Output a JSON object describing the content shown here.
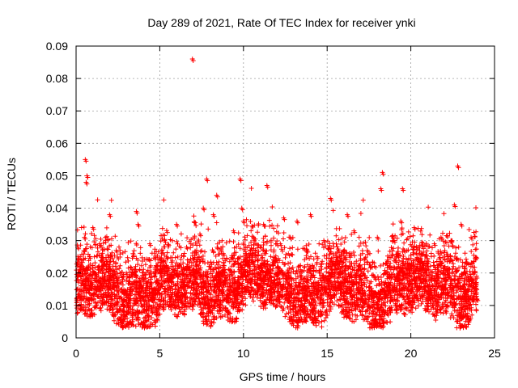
{
  "chart_data": {
    "type": "scatter",
    "title": "Day 289 of 2021, Rate Of TEC Index for receiver ynki",
    "xlabel": "GPS time / hours",
    "ylabel": "ROTI / TECUs",
    "xlim": [
      0,
      25
    ],
    "ylim": [
      0,
      0.09
    ],
    "x_ticks": [
      0,
      5,
      10,
      15,
      20,
      25
    ],
    "x_tick_labels": [
      "0",
      "5",
      "10",
      "15",
      "20",
      "25"
    ],
    "y_ticks": [
      0,
      0.01,
      0.02,
      0.03,
      0.04,
      0.05,
      0.06,
      0.07,
      0.08,
      0.09
    ],
    "y_tick_labels": [
      "0",
      "0.01",
      "0.02",
      "0.03",
      "0.04",
      "0.05",
      "0.06",
      "0.07",
      "0.08",
      "0.09"
    ],
    "grid": true,
    "marker": "plus",
    "series_color": "#ff0000",
    "series": [
      {
        "name": "ROTI",
        "x": [
          0.05,
          0.1,
          0.2,
          0.3,
          0.4,
          0.5,
          0.55,
          0.6,
          0.65,
          0.7,
          0.8,
          0.9,
          1.0,
          1.2,
          1.4,
          1.6,
          1.8,
          2.0,
          2.1,
          2.2,
          2.4,
          2.6,
          2.8,
          3.0,
          3.2,
          3.4,
          3.6,
          3.7,
          3.8,
          4.0,
          4.2,
          4.4,
          4.6,
          4.8,
          5.0,
          5.2,
          5.4,
          5.6,
          5.8,
          6.0,
          6.2,
          6.4,
          6.6,
          6.8,
          6.95,
          7.2,
          7.4,
          7.6,
          7.8,
          8.0,
          8.2,
          8.4,
          8.6,
          8.8,
          9.0,
          9.2,
          9.4,
          9.6,
          9.8,
          9.9,
          10.0,
          10.2,
          10.4,
          10.6,
          10.8,
          11.0,
          11.2,
          11.4,
          11.6,
          11.8,
          12.0,
          12.2,
          12.4,
          12.6,
          12.8,
          13.0,
          13.2,
          13.4,
          13.6,
          13.8,
          14.0,
          14.2,
          14.4,
          14.6,
          14.8,
          15.0,
          15.2,
          15.4,
          15.6,
          15.8,
          16.0,
          16.2,
          16.4,
          16.6,
          16.8,
          17.0,
          17.2,
          17.4,
          17.6,
          17.8,
          18.0,
          18.2,
          18.3,
          18.4,
          18.6,
          18.8,
          19.0,
          19.2,
          19.4,
          19.5,
          19.6,
          19.8,
          20.0,
          20.2,
          20.4,
          20.6,
          20.8,
          21.0,
          21.2,
          21.4,
          21.6,
          21.8,
          22.0,
          22.2,
          22.4,
          22.6,
          22.8,
          23.0,
          23.2,
          23.4,
          23.6,
          23.8,
          23.95
        ],
        "y": [
          0.012,
          0.028,
          0.013,
          0.009,
          0.022,
          0.031,
          0.055,
          0.048,
          0.05,
          0.018,
          0.025,
          0.012,
          0.034,
          0.015,
          0.029,
          0.011,
          0.024,
          0.038,
          0.01,
          0.016,
          0.027,
          0.009,
          0.014,
          0.02,
          0.012,
          0.026,
          0.039,
          0.035,
          0.013,
          0.018,
          0.011,
          0.029,
          0.014,
          0.009,
          0.016,
          0.012,
          0.025,
          0.01,
          0.021,
          0.035,
          0.013,
          0.017,
          0.028,
          0.011,
          0.086,
          0.015,
          0.032,
          0.04,
          0.049,
          0.022,
          0.038,
          0.044,
          0.018,
          0.026,
          0.013,
          0.021,
          0.033,
          0.016,
          0.049,
          0.04,
          0.036,
          0.018,
          0.026,
          0.031,
          0.014,
          0.022,
          0.035,
          0.047,
          0.013,
          0.024,
          0.017,
          0.029,
          0.037,
          0.015,
          0.031,
          0.012,
          0.036,
          0.021,
          0.014,
          0.027,
          0.038,
          0.016,
          0.025,
          0.011,
          0.03,
          0.018,
          0.043,
          0.013,
          0.024,
          0.017,
          0.012,
          0.038,
          0.026,
          0.033,
          0.015,
          0.021,
          0.011,
          0.027,
          0.014,
          0.019,
          0.031,
          0.046,
          0.051,
          0.017,
          0.024,
          0.013,
          0.03,
          0.018,
          0.036,
          0.046,
          0.027,
          0.015,
          0.022,
          0.034,
          0.012,
          0.026,
          0.018,
          0.024,
          0.014,
          0.029,
          0.021,
          0.031,
          0.016,
          0.025,
          0.03,
          0.041,
          0.053,
          0.035,
          0.022,
          0.019,
          0.031,
          0.015,
          0.012
        ]
      }
    ]
  }
}
